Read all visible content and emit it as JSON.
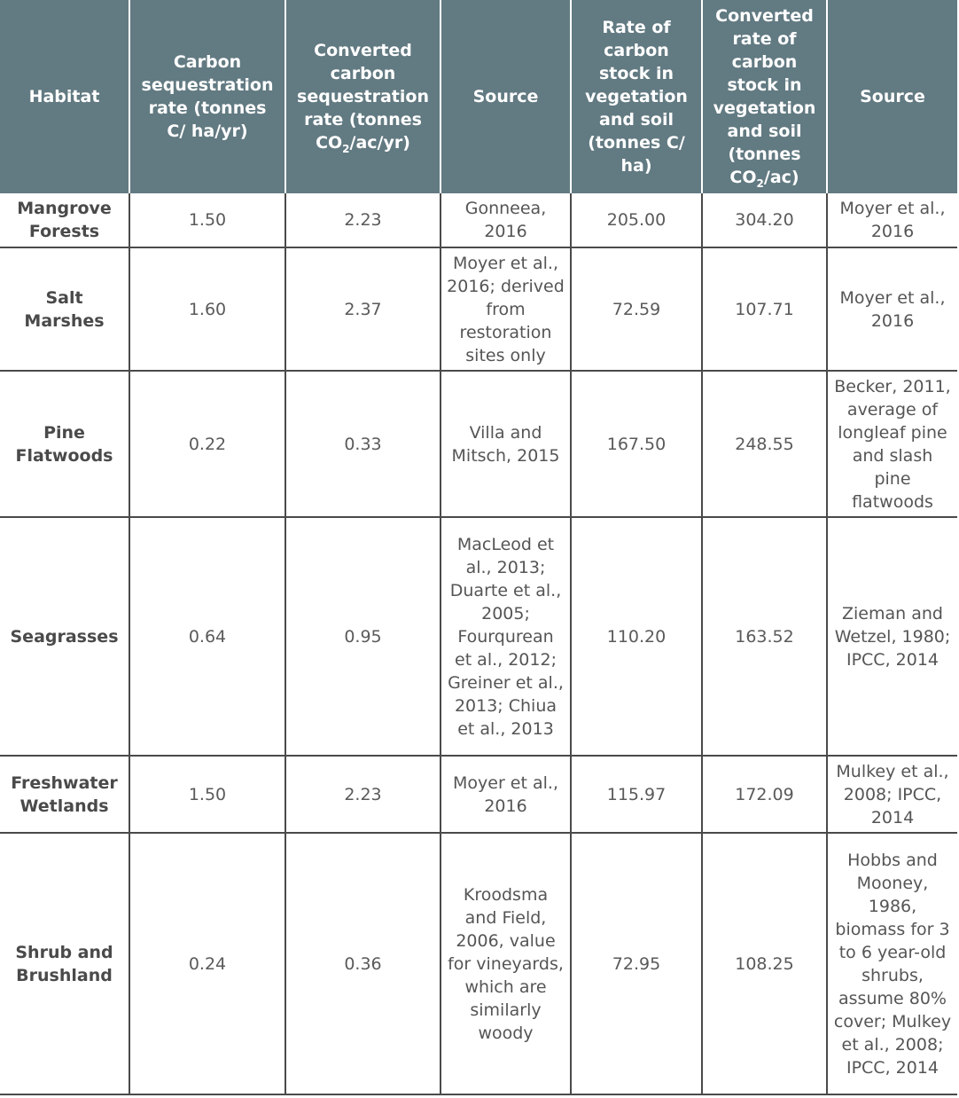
{
  "headers": {
    "habitat": "Habitat",
    "seq_rate": "Carbon sequestration rate (tonnes C/ ha/yr)",
    "conv_seq_pre": "Converted carbon sequestration rate (tonnes CO",
    "conv_seq_sub": "2",
    "conv_seq_post": "/ac/yr)",
    "source1": "Source",
    "stock_rate": "Rate of carbon stock in vegetation and soil (tonnes C/ ha)",
    "conv_stock_pre": "Converted rate of carbon stock in vegetation and soil (tonnes CO",
    "conv_stock_sub": "2",
    "conv_stock_post": "/ac)",
    "source2": "Source"
  },
  "rows": [
    {
      "habitat": "Mangrove Forests",
      "seq": "1.50",
      "conv_seq": "2.23",
      "source1": "Gonneea, 2016",
      "stock": "205.00",
      "conv_stock": "304.20",
      "source2": "Moyer et al., 2016"
    },
    {
      "habitat": "Salt Marshes",
      "seq": "1.60",
      "conv_seq": "2.37",
      "source1": "Moyer et al., 2016; derived from restoration sites only",
      "stock": "72.59",
      "conv_stock": "107.71",
      "source2": "Moyer et al., 2016"
    },
    {
      "habitat": "Pine Flatwoods",
      "seq": "0.22",
      "conv_seq": "0.33",
      "source1": "Villa and Mitsch, 2015",
      "stock": "167.50",
      "conv_stock": "248.55",
      "source2": "Becker, 2011, average of longleaf pine and slash pine flatwoods"
    },
    {
      "habitat": "Seagrasses",
      "seq": "0.64",
      "conv_seq": "0.95",
      "source1": "MacLeod et al., 2013; Duarte et al., 2005; Fourqurean et al., 2012; Greiner et al., 2013; Chiua et al., 2013",
      "stock": "110.20",
      "conv_stock": "163.52",
      "source2": "Zieman and Wetzel, 1980; IPCC, 2014"
    },
    {
      "habitat": "Freshwater Wetlands",
      "seq": "1.50",
      "conv_seq": "2.23",
      "source1": "Moyer et al., 2016",
      "stock": "115.97",
      "conv_stock": "172.09",
      "source2": "Mulkey et al., 2008; IPCC, 2014"
    },
    {
      "habitat": "Shrub and Brushland",
      "seq": "0.24",
      "conv_seq": "0.36",
      "source1": "Kroodsma and Field, 2006, value for vineyards, which are similarly woody",
      "stock": "72.95",
      "conv_stock": "108.25",
      "source2": "Hobbs and Mooney, 1986, biomass for 3 to 6 year-old shrubs, assume 80% cover; Mulkey et al., 2008; IPCC, 2014"
    }
  ]
}
